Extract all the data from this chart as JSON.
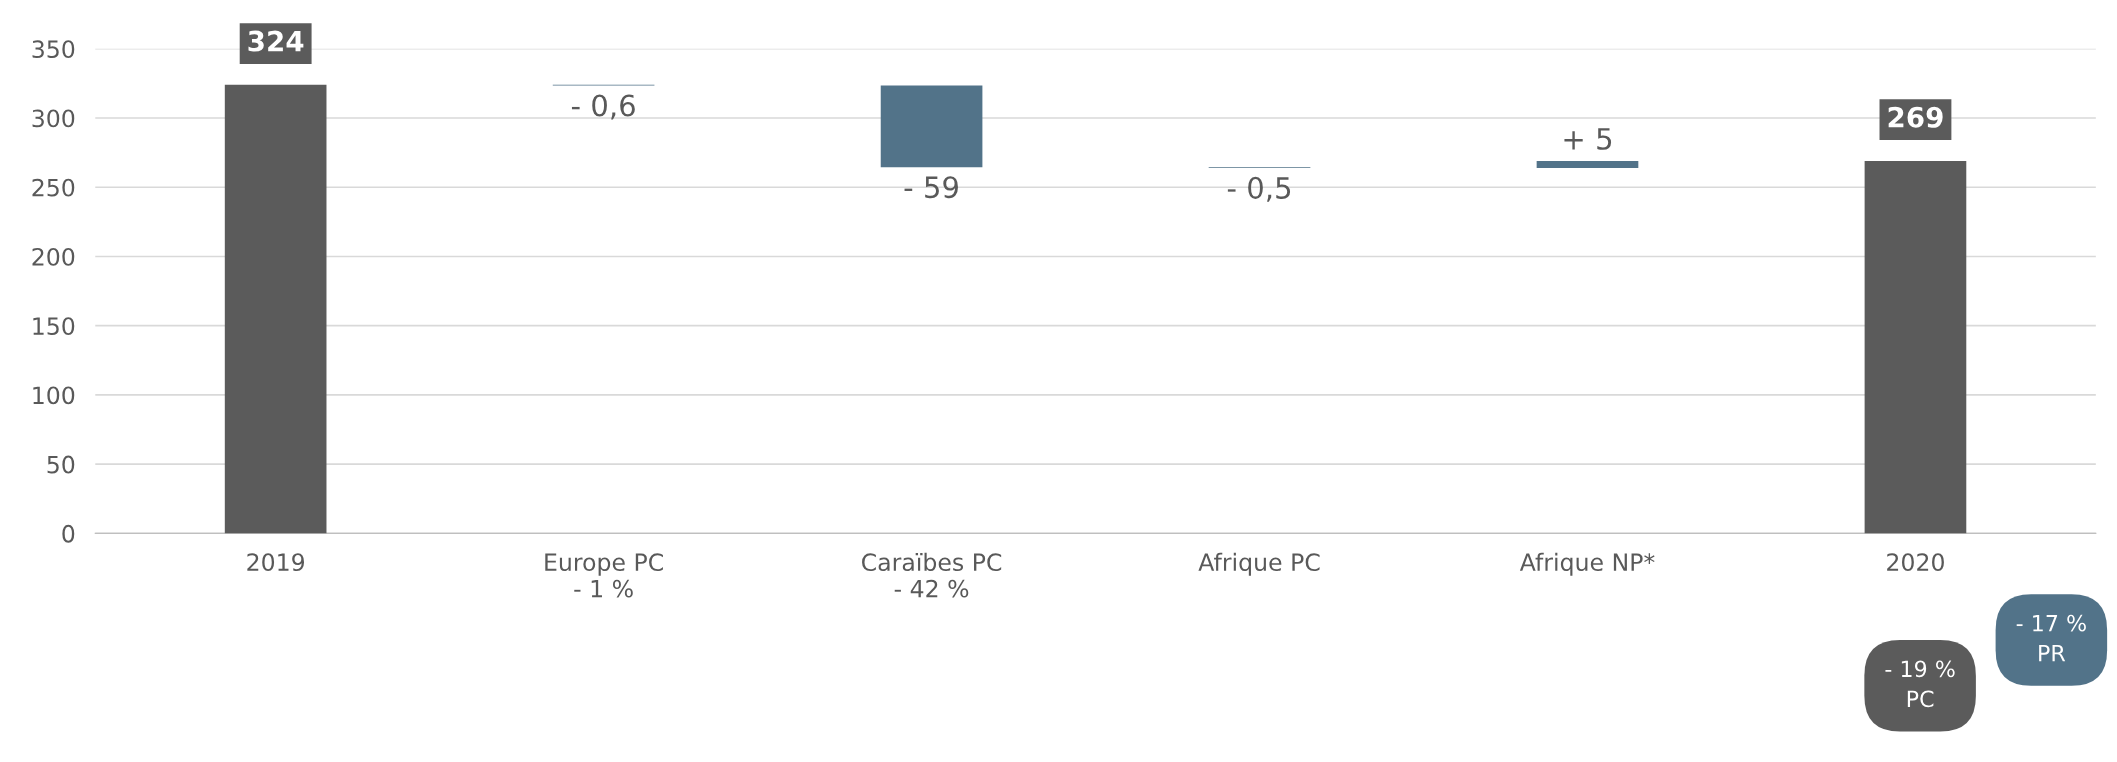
{
  "chart_data": {
    "type": "bar",
    "categories": [
      "2019",
      "Europe PC\n- 1 %",
      "Caraïbes PC\n- 42 %",
      "Afrique PC",
      "Afrique NP*",
      "2020"
    ],
    "values": [
      324,
      -0.6,
      -59,
      -0.5,
      5,
      269
    ],
    "base": [
      0,
      324,
      323.4,
      264.4,
      263.9,
      0
    ],
    "colors": [
      "#5b5b5b",
      "#527389",
      "#527389",
      "#527389",
      "#527389",
      "#5b5b5b"
    ],
    "value_labels": [
      "324",
      "- 0,6",
      "- 59",
      "- 0,5",
      "+ 5",
      "269"
    ],
    "ylim": [
      0,
      350
    ],
    "yticks": [
      0,
      50,
      100,
      150,
      200,
      250,
      300,
      350
    ],
    "grid": "y",
    "legend": false,
    "annotations": [
      "- 19 %\nPC",
      "- 17 %\nPR"
    ]
  }
}
